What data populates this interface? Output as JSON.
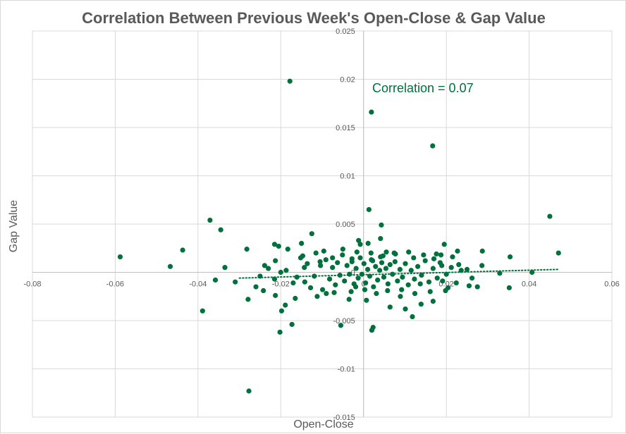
{
  "chart_data": {
    "type": "scatter",
    "title": "Correlation Between Previous Week's Open-Close & Gap Value",
    "xlabel": "Open-Close",
    "ylabel": "Gap Value",
    "xlim": [
      -0.08,
      0.06
    ],
    "ylim": [
      -0.015,
      0.025
    ],
    "x_ticks": [
      -0.08,
      -0.06,
      -0.04,
      -0.02,
      0,
      0.02,
      0.04,
      0.06
    ],
    "y_ticks": [
      -0.015,
      -0.01,
      -0.005,
      0,
      0.005,
      0.01,
      0.015,
      0.02,
      0.025
    ],
    "x_tick_labels": [
      "-0.08",
      "-0.06",
      "-0.04",
      "-0.02",
      "0",
      "0.02",
      "0.04",
      "0.06"
    ],
    "y_tick_labels": [
      "-0.015",
      "-0.01",
      "-0.005",
      "0",
      "0.005",
      "0.01",
      "0.015",
      "0.02",
      "0.025"
    ],
    "grid": true,
    "point_color": "#00703c",
    "trendline": {
      "style": "dotted",
      "color": "#00703c",
      "x": [
        -0.03,
        0.047
      ],
      "y": [
        -0.0006,
        0.0003
      ]
    },
    "annotation": "Correlation = 0.07",
    "points": [
      [
        -0.0588,
        0.0016
      ],
      [
        -0.0467,
        0.0006
      ],
      [
        -0.0437,
        0.0023
      ],
      [
        -0.0371,
        0.0054
      ],
      [
        -0.0345,
        0.0044
      ],
      [
        -0.0389,
        -0.004
      ],
      [
        -0.0335,
        0.0005
      ],
      [
        -0.031,
        -0.001
      ],
      [
        -0.0358,
        -0.0008
      ],
      [
        -0.0279,
        -0.0028
      ],
      [
        -0.0277,
        -0.0123
      ],
      [
        -0.0282,
        0.0024
      ],
      [
        -0.0215,
        0.0029
      ],
      [
        -0.0205,
        0.0027
      ],
      [
        -0.0183,
        0.0024
      ],
      [
        -0.0147,
        0.0017
      ],
      [
        -0.0115,
        0.002
      ],
      [
        -0.0075,
        0.0015
      ],
      [
        -0.0028,
        0.0014
      ],
      [
        0.0022,
        0.0012
      ],
      [
        0.0041,
        0.0016
      ],
      [
        0.0077,
        0.0019
      ],
      [
        0.0121,
        0.0015
      ],
      [
        0.0187,
        0.0018
      ],
      [
        0.0195,
        0.0029
      ],
      [
        0.0227,
        0.0022
      ],
      [
        0.0287,
        0.0022
      ],
      [
        0.0329,
        -0.0001
      ],
      [
        0.0354,
        0.0016
      ],
      [
        0.0352,
        -0.0016
      ],
      [
        0.045,
        0.0058
      ],
      [
        0.0471,
        0.002
      ],
      [
        0.0407,
        0.0
      ],
      [
        0.0286,
        0.0007
      ],
      [
        0.025,
        0.0003
      ],
      [
        -0.0202,
        -0.0062
      ],
      [
        -0.0213,
        -0.0024
      ],
      [
        -0.0189,
        -0.0034
      ],
      [
        -0.02,
        0.0
      ],
      [
        -0.017,
        -0.0011
      ],
      [
        -0.0173,
        -0.0054
      ],
      [
        -0.0198,
        -0.004
      ],
      [
        -0.0165,
        -0.0027
      ],
      [
        -0.015,
        0.003
      ],
      [
        -0.0125,
        0.004
      ],
      [
        -0.0105,
        0.0011
      ],
      [
        -0.0143,
        0.0005
      ],
      [
        -0.0128,
        -0.0016
      ],
      [
        -0.009,
        -0.0022
      ],
      [
        -0.0055,
        -0.0055
      ],
      [
        -0.0035,
        -0.0028
      ],
      [
        -0.0019,
        -0.0015
      ],
      [
        -0.0012,
        0.0033
      ],
      [
        -0.0008,
        0.0029
      ],
      [
        0.0007,
        -0.0029
      ],
      [
        0.0011,
        0.003
      ],
      [
        0.0013,
        0.0065
      ],
      [
        0.0023,
        -0.0057
      ],
      [
        0.002,
        -0.006
      ],
      [
        0.0041,
        0.0035
      ],
      [
        0.0043,
        0.0049
      ],
      [
        0.0055,
        0.0021
      ],
      [
        0.0064,
        -0.0036
      ],
      [
        0.0089,
        -0.0025
      ],
      [
        0.0101,
        -0.0038
      ],
      [
        0.0118,
        -0.0046
      ],
      [
        0.0139,
        -0.0033
      ],
      [
        0.0137,
        -0.0012
      ],
      [
        0.0168,
        -0.003
      ],
      [
        0.017,
        0.0014
      ],
      [
        0.0185,
        0.001
      ],
      [
        0.0191,
        -0.0009
      ],
      [
        0.0204,
        -0.0016
      ],
      [
        0.023,
        0.0008
      ],
      [
        0.0255,
        -0.0014
      ],
      [
        0.0262,
        -0.0006
      ],
      [
        0.0275,
        -0.0015
      ],
      [
        0.0019,
        0.0166
      ],
      [
        0.0167,
        0.0131
      ],
      [
        -0.0178,
        0.0198
      ],
      [
        -0.0242,
        -0.0019
      ],
      [
        -0.025,
        -0.0004
      ],
      [
        -0.023,
        0.0004
      ],
      [
        -0.0215,
        -0.0007
      ],
      [
        -0.0213,
        0.0012
      ],
      [
        -0.0142,
        -0.001
      ],
      [
        -0.0136,
        0.0009
      ],
      [
        -0.0119,
        -0.0004
      ],
      [
        -0.0104,
        0.0007
      ],
      [
        -0.0099,
        -0.0018
      ],
      [
        -0.0091,
        0.0013
      ],
      [
        -0.0082,
        -0.0007
      ],
      [
        -0.0075,
        0.0005
      ],
      [
        -0.0068,
        -0.0013
      ],
      [
        -0.0063,
        0.001
      ],
      [
        -0.0057,
        -0.0003
      ],
      [
        -0.0051,
        0.0018
      ],
      [
        -0.0046,
        -0.0009
      ],
      [
        -0.004,
        0.0007
      ],
      [
        -0.0034,
        -0.0002
      ],
      [
        -0.0028,
        0.0011
      ],
      [
        -0.0023,
        -0.0012
      ],
      [
        -0.0018,
        0.0004
      ],
      [
        -0.0013,
        -0.0006
      ],
      [
        -0.0008,
        0.0015
      ],
      [
        -0.0004,
        -0.0002
      ],
      [
        0.0001,
        0.0009
      ],
      [
        0.0005,
        -0.0011
      ],
      [
        0.001,
        0.0003
      ],
      [
        0.0015,
        -0.0004
      ],
      [
        0.0019,
        0.0013
      ],
      [
        0.0024,
        -0.0015
      ],
      [
        0.0029,
        0.0006
      ],
      [
        0.0034,
        -0.0008
      ],
      [
        0.0039,
        0.0002
      ],
      [
        0.0044,
        0.001
      ],
      [
        0.0049,
        -0.0005
      ],
      [
        0.0054,
        0.0004
      ],
      [
        0.0059,
        -0.0012
      ],
      [
        0.0064,
        0.0008
      ],
      [
        0.007,
        -0.0002
      ],
      [
        0.0076,
        0.0011
      ],
      [
        0.0082,
        -0.0009
      ],
      [
        0.0088,
        0.0003
      ],
      [
        0.0094,
        -0.0005
      ],
      [
        0.0101,
        0.0009
      ],
      [
        0.0108,
        -0.0013
      ],
      [
        0.0115,
        0.0002
      ],
      [
        0.0123,
        -0.0007
      ],
      [
        0.0131,
        0.0006
      ],
      [
        0.014,
        -0.0003
      ],
      [
        0.0149,
        0.0012
      ],
      [
        0.0158,
        -0.001
      ],
      [
        0.0168,
        0.0004
      ],
      [
        0.0178,
        -0.0006
      ],
      [
        0.0189,
        0.0007
      ],
      [
        0.02,
        -0.0002
      ],
      [
        0.0212,
        0.0005
      ],
      [
        0.0224,
        -0.0011
      ],
      [
        0.0236,
        0.0002
      ],
      [
        -0.026,
        -0.0015
      ],
      [
        -0.0239,
        0.0007
      ],
      [
        -0.0187,
        0.0002
      ],
      [
        -0.0161,
        -0.0005
      ],
      [
        -0.0152,
        0.0015
      ],
      [
        -0.0112,
        -0.0025
      ],
      [
        -0.0096,
        0.0022
      ],
      [
        -0.0071,
        -0.0021
      ],
      [
        -0.005,
        0.0024
      ],
      [
        -0.003,
        -0.002
      ],
      [
        -0.0016,
        0.0021
      ],
      [
        0.0003,
        -0.0018
      ],
      [
        0.0018,
        0.002
      ],
      [
        0.0031,
        -0.0022
      ],
      [
        0.0047,
        0.0017
      ],
      [
        0.0058,
        -0.0019
      ],
      [
        0.0074,
        0.002
      ],
      [
        0.0092,
        -0.0018
      ],
      [
        0.0109,
        0.0021
      ],
      [
        0.0124,
        -0.0022
      ],
      [
        0.0145,
        0.0018
      ],
      [
        0.0161,
        -0.002
      ],
      [
        0.0176,
        0.0019
      ],
      [
        0.0198,
        -0.0019
      ],
      [
        0.0215,
        0.0016
      ]
    ]
  }
}
